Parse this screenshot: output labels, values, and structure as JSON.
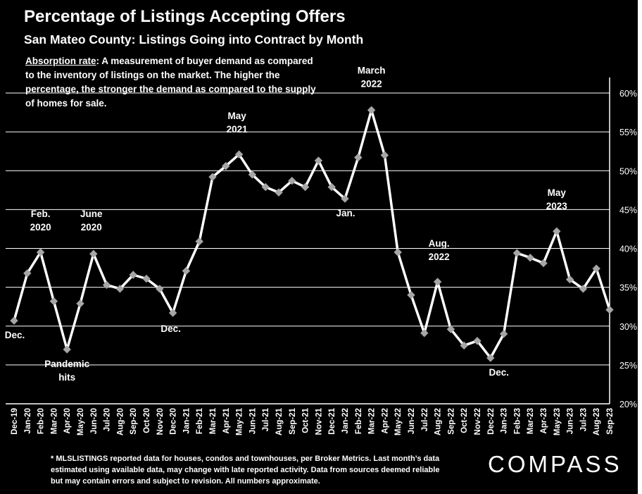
{
  "header": {
    "title": "Percentage of Listings Accepting Offers",
    "subtitle": "San Mateo County: Listings Going into Contract by Month"
  },
  "definition": {
    "term": "Absorption rate",
    "text": ":  A measurement of buyer demand as compared to the inventory of listings on the market. The higher the percentage, the stronger the demand as compared to the supply of homes for sale."
  },
  "footnote": "* MLSLISTINGS reported data for houses, condos and townhouses, per Broker Metrics. Last month’s data estimated using available data, may change with late reported activity. Data from sources deemed reliable but may contain errors and subject to revision. All numbers approximate.",
  "logo": "COMPASS",
  "colors": {
    "background": "#000000",
    "line": "#ffffff",
    "marker": "#a6a6a6",
    "grid": "#ffffff"
  },
  "chart_data": {
    "type": "line",
    "categories": [
      "Dec-19",
      "Jan-20",
      "Feb-20",
      "Mar-20",
      "Apr-20",
      "May-20",
      "Jun-20",
      "Jul-20",
      "Aug-20",
      "Sep-20",
      "Oct-20",
      "Nov-20",
      "Dec-20",
      "Jan-21",
      "Feb-21",
      "Mar-21",
      "Apr-21",
      "May-21",
      "Jun-21",
      "Jul-21",
      "Aug-21",
      "Sep-21",
      "Oct-21",
      "Nov-21",
      "Dec-21",
      "Jan-22",
      "Feb-22",
      "Mar-22",
      "Apr-22",
      "May-22",
      "Jun-22",
      "Jul-22",
      "Aug-22",
      "Sep-22",
      "Oct-22",
      "Nov-22",
      "Dec-22",
      "Jan-23",
      "Feb-23",
      "Mar-23",
      "Apr-23",
      "May-23",
      "Jun-23",
      "Jul-23",
      "Aug-23",
      "Sep-23"
    ],
    "series": [
      {
        "values": [
          30.7,
          36.8,
          39.5,
          33.2,
          27.0,
          32.9,
          39.3,
          35.3,
          34.8,
          36.6,
          36.1,
          34.8,
          31.7,
          37.1,
          40.9,
          49.2,
          50.6,
          52.1,
          49.5,
          47.9,
          47.2,
          48.7,
          47.9,
          51.3,
          47.9,
          46.4,
          51.7,
          57.8,
          52.0,
          39.5,
          34.0,
          29.1,
          35.7,
          29.6,
          27.5,
          28.1,
          25.9,
          29.0,
          39.4,
          38.8,
          38.1,
          42.2,
          36.0,
          34.8,
          37.4,
          32.1
        ]
      }
    ],
    "ylim": [
      20,
      60
    ],
    "yticks": [
      20,
      25,
      30,
      35,
      40,
      45,
      50,
      55,
      60
    ],
    "y_tick_suffix": "%",
    "y_axis_side": "right",
    "grid": true,
    "annotations": [
      {
        "index": 0,
        "lines": [
          "Dec."
        ]
      },
      {
        "index": 2,
        "lines": [
          "Feb.",
          "2020"
        ]
      },
      {
        "index": 4,
        "lines": [
          "Pandemic",
          "hits"
        ]
      },
      {
        "index": 6,
        "lines": [
          "June",
          "2020"
        ]
      },
      {
        "index": 12,
        "lines": [
          "Dec."
        ]
      },
      {
        "index": 17,
        "lines": [
          "May",
          "2021"
        ]
      },
      {
        "index": 25,
        "lines": [
          "Jan."
        ]
      },
      {
        "index": 27,
        "lines": [
          "March",
          "2022"
        ]
      },
      {
        "index": 32,
        "lines": [
          "Aug.",
          "2022"
        ]
      },
      {
        "index": 36,
        "lines": [
          "Dec."
        ]
      },
      {
        "index": 41,
        "lines": [
          "May",
          "2023"
        ]
      }
    ]
  }
}
